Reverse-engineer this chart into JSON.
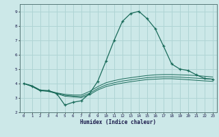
{
  "xlabel": "Humidex (Indice chaleur)",
  "ylabel": "",
  "xlim": [
    -0.5,
    23.5
  ],
  "ylim": [
    2,
    9.5
  ],
  "bg_color": "#cce8e8",
  "grid_color": "#afd4d4",
  "line_color": "#1a6b5a",
  "xticks": [
    0,
    1,
    2,
    3,
    4,
    5,
    6,
    7,
    8,
    9,
    10,
    11,
    12,
    13,
    14,
    15,
    16,
    17,
    18,
    19,
    20,
    21,
    22,
    23
  ],
  "yticks": [
    2,
    3,
    4,
    5,
    6,
    7,
    8,
    9
  ],
  "curves": [
    {
      "x": [
        0,
        1,
        2,
        3,
        4,
        5,
        6,
        7,
        8,
        9,
        10,
        11,
        12,
        13,
        14,
        15,
        16,
        17,
        18,
        19,
        20,
        21,
        22,
        23
      ],
      "y": [
        4.0,
        3.8,
        3.5,
        3.5,
        3.3,
        2.5,
        2.7,
        2.8,
        3.3,
        4.15,
        5.55,
        7.0,
        8.3,
        8.85,
        9.0,
        8.5,
        7.8,
        6.6,
        5.35,
        5.0,
        4.9,
        4.6,
        4.35,
        4.3
      ],
      "marker": "+"
    },
    {
      "x": [
        0,
        1,
        2,
        3,
        4,
        5,
        6,
        7,
        8,
        9,
        10,
        11,
        12,
        13,
        14,
        15,
        16,
        17,
        18,
        19,
        20,
        21,
        22,
        23
      ],
      "y": [
        4.0,
        3.85,
        3.55,
        3.5,
        3.35,
        3.25,
        3.2,
        3.2,
        3.45,
        3.78,
        4.05,
        4.2,
        4.32,
        4.4,
        4.48,
        4.55,
        4.6,
        4.62,
        4.62,
        4.6,
        4.58,
        4.55,
        4.5,
        4.45
      ],
      "marker": null
    },
    {
      "x": [
        0,
        1,
        2,
        3,
        4,
        5,
        6,
        7,
        8,
        9,
        10,
        11,
        12,
        13,
        14,
        15,
        16,
        17,
        18,
        19,
        20,
        21,
        22,
        23
      ],
      "y": [
        4.0,
        3.82,
        3.52,
        3.47,
        3.32,
        3.18,
        3.13,
        3.1,
        3.32,
        3.65,
        3.9,
        4.05,
        4.17,
        4.25,
        4.33,
        4.4,
        4.44,
        4.46,
        4.46,
        4.44,
        4.4,
        4.37,
        4.33,
        4.3
      ],
      "marker": null
    },
    {
      "x": [
        0,
        1,
        2,
        3,
        4,
        5,
        6,
        7,
        8,
        9,
        10,
        11,
        12,
        13,
        14,
        15,
        16,
        17,
        18,
        19,
        20,
        21,
        22,
        23
      ],
      "y": [
        4.0,
        3.8,
        3.5,
        3.45,
        3.3,
        3.12,
        3.07,
        3.02,
        3.22,
        3.55,
        3.78,
        3.92,
        4.03,
        4.12,
        4.2,
        4.27,
        4.3,
        4.33,
        4.33,
        4.3,
        4.26,
        4.22,
        4.18,
        4.15
      ],
      "marker": null
    }
  ]
}
